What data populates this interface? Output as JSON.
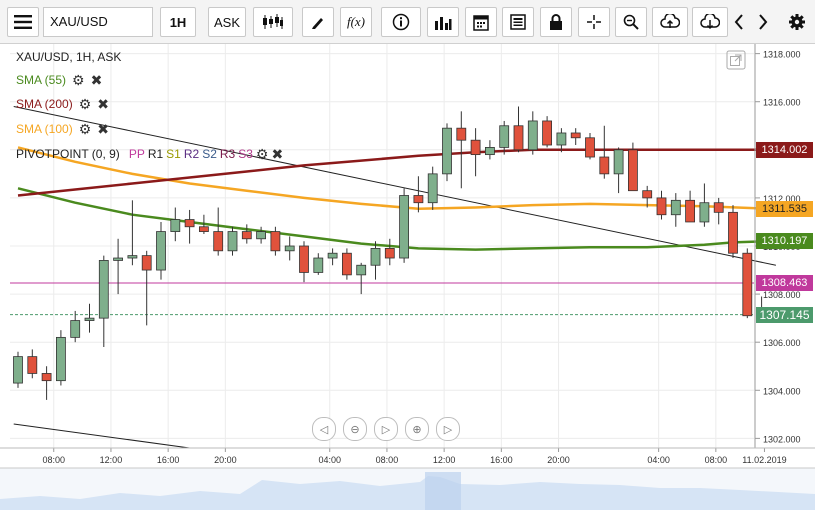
{
  "toolbar": {
    "symbol": "XAU/USD",
    "timeframe": "1H",
    "price_type": "ASK"
  },
  "legend": {
    "title": "XAU/USD, 1H, ASK",
    "sma55": "SMA (55)",
    "sma200": "SMA (200)",
    "sma100": "SMA (100)",
    "pivot": {
      "prefix": "PIVOTPOINT (0, 9)",
      "pp": "PP",
      "r1": "R1",
      "s1": "S1",
      "r2": "R2",
      "s2": "S2",
      "r3": "R3",
      "s3": "S3"
    }
  },
  "colors": {
    "bull": "#7faf8c",
    "bear": "#e0523c",
    "sma55": "#4a8a1e",
    "sma200": "#8b1a1a",
    "sma100": "#f5a623",
    "pivot": "#c0399c",
    "last": "#4c9a6c"
  },
  "price_tags": {
    "sma200": "1314.002",
    "sma100": "1311.535",
    "sma55": "1310.197",
    "pivot": "1308.463",
    "last": "1307.145"
  },
  "chart_data": {
    "type": "candlestick",
    "title": "XAU/USD, 1H, ASK",
    "y_ticks": [
      "1302.000",
      "1304.000",
      "1306.000",
      "1308.000",
      "1310.000",
      "1312.000",
      "1314.000",
      "1316.000",
      "1318.000"
    ],
    "ylim": [
      1301.6,
      1318.4
    ],
    "x_ticks": [
      {
        "label": "08:00",
        "index": 2.5
      },
      {
        "label": "12:00",
        "index": 6.5
      },
      {
        "label": "16:00",
        "index": 10.5
      },
      {
        "label": "20:00",
        "index": 14.5
      },
      {
        "label": "04:00",
        "index": 21.8
      },
      {
        "label": "08:00",
        "index": 25.8
      },
      {
        "label": "12:00",
        "index": 29.8
      },
      {
        "label": "16:00",
        "index": 33.8
      },
      {
        "label": "20:00",
        "index": 37.8
      },
      {
        "label": "04:00",
        "index": 44.8
      },
      {
        "label": "08:00",
        "index": 48.8
      },
      {
        "label": "11.02.2019",
        "index": 52.2
      }
    ],
    "candles": [
      {
        "o": 1304.3,
        "h": 1305.6,
        "l": 1304.1,
        "c": 1305.4
      },
      {
        "o": 1305.4,
        "h": 1305.7,
        "l": 1304.5,
        "c": 1304.7
      },
      {
        "o": 1304.7,
        "h": 1305.0,
        "l": 1303.6,
        "c": 1304.4
      },
      {
        "o": 1304.4,
        "h": 1306.5,
        "l": 1304.2,
        "c": 1306.2
      },
      {
        "o": 1306.2,
        "h": 1307.3,
        "l": 1306.0,
        "c": 1306.9
      },
      {
        "o": 1306.9,
        "h": 1307.6,
        "l": 1306.4,
        "c": 1307.0
      },
      {
        "o": 1307.0,
        "h": 1309.6,
        "l": 1305.8,
        "c": 1309.4
      },
      {
        "o": 1309.4,
        "h": 1310.3,
        "l": 1308.0,
        "c": 1309.5
      },
      {
        "o": 1309.5,
        "h": 1311.9,
        "l": 1309.2,
        "c": 1309.6
      },
      {
        "o": 1309.6,
        "h": 1309.8,
        "l": 1306.7,
        "c": 1309.0
      },
      {
        "o": 1309.0,
        "h": 1311.0,
        "l": 1308.6,
        "c": 1310.6
      },
      {
        "o": 1310.6,
        "h": 1311.6,
        "l": 1310.2,
        "c": 1311.1
      },
      {
        "o": 1311.1,
        "h": 1311.5,
        "l": 1310.1,
        "c": 1310.8
      },
      {
        "o": 1310.8,
        "h": 1311.3,
        "l": 1310.5,
        "c": 1310.6
      },
      {
        "o": 1310.6,
        "h": 1311.6,
        "l": 1309.6,
        "c": 1309.8
      },
      {
        "o": 1309.8,
        "h": 1310.8,
        "l": 1309.6,
        "c": 1310.6
      },
      {
        "o": 1310.6,
        "h": 1310.9,
        "l": 1310.1,
        "c": 1310.3
      },
      {
        "o": 1310.3,
        "h": 1310.8,
        "l": 1310.1,
        "c": 1310.6
      },
      {
        "o": 1310.6,
        "h": 1310.8,
        "l": 1309.6,
        "c": 1309.8
      },
      {
        "o": 1309.8,
        "h": 1310.4,
        "l": 1309.4,
        "c": 1310.0
      },
      {
        "o": 1310.0,
        "h": 1310.2,
        "l": 1308.5,
        "c": 1308.9
      },
      {
        "o": 1308.9,
        "h": 1309.7,
        "l": 1308.8,
        "c": 1309.5
      },
      {
        "o": 1309.5,
        "h": 1309.9,
        "l": 1309.2,
        "c": 1309.7
      },
      {
        "o": 1309.7,
        "h": 1309.9,
        "l": 1308.6,
        "c": 1308.8
      },
      {
        "o": 1308.8,
        "h": 1309.3,
        "l": 1308.0,
        "c": 1309.2
      },
      {
        "o": 1309.2,
        "h": 1310.2,
        "l": 1308.6,
        "c": 1309.9
      },
      {
        "o": 1309.9,
        "h": 1310.3,
        "l": 1309.2,
        "c": 1309.5
      },
      {
        "o": 1309.5,
        "h": 1312.4,
        "l": 1309.3,
        "c": 1312.1
      },
      {
        "o": 1312.1,
        "h": 1312.9,
        "l": 1311.4,
        "c": 1311.8
      },
      {
        "o": 1311.8,
        "h": 1313.3,
        "l": 1311.5,
        "c": 1313.0
      },
      {
        "o": 1313.0,
        "h": 1315.1,
        "l": 1312.7,
        "c": 1314.9
      },
      {
        "o": 1314.9,
        "h": 1315.6,
        "l": 1312.4,
        "c": 1314.4
      },
      {
        "o": 1314.4,
        "h": 1314.9,
        "l": 1312.9,
        "c": 1313.8
      },
      {
        "o": 1313.8,
        "h": 1314.4,
        "l": 1313.6,
        "c": 1314.1
      },
      {
        "o": 1314.1,
        "h": 1315.2,
        "l": 1313.8,
        "c": 1315.0
      },
      {
        "o": 1315.0,
        "h": 1315.8,
        "l": 1313.9,
        "c": 1314.0
      },
      {
        "o": 1314.0,
        "h": 1315.6,
        "l": 1313.8,
        "c": 1315.2
      },
      {
        "o": 1315.2,
        "h": 1315.4,
        "l": 1314.1,
        "c": 1314.2
      },
      {
        "o": 1314.2,
        "h": 1314.9,
        "l": 1313.9,
        "c": 1314.7
      },
      {
        "o": 1314.7,
        "h": 1314.9,
        "l": 1314.2,
        "c": 1314.5
      },
      {
        "o": 1314.5,
        "h": 1314.7,
        "l": 1313.6,
        "c": 1313.7
      },
      {
        "o": 1313.7,
        "h": 1315.0,
        "l": 1312.8,
        "c": 1313.0
      },
      {
        "o": 1313.0,
        "h": 1314.1,
        "l": 1312.2,
        "c": 1314.0
      },
      {
        "o": 1314.0,
        "h": 1314.3,
        "l": 1312.3,
        "c": 1312.3
      },
      {
        "o": 1312.3,
        "h": 1312.5,
        "l": 1311.6,
        "c": 1312.0
      },
      {
        "o": 1312.0,
        "h": 1312.3,
        "l": 1311.1,
        "c": 1311.3
      },
      {
        "o": 1311.3,
        "h": 1312.2,
        "l": 1310.8,
        "c": 1311.9
      },
      {
        "o": 1311.9,
        "h": 1312.3,
        "l": 1311.0,
        "c": 1311.0
      },
      {
        "o": 1311.0,
        "h": 1312.6,
        "l": 1310.8,
        "c": 1311.8
      },
      {
        "o": 1311.8,
        "h": 1312.0,
        "l": 1310.9,
        "c": 1311.4
      },
      {
        "o": 1311.4,
        "h": 1311.7,
        "l": 1309.5,
        "c": 1309.7
      },
      {
        "o": 1309.7,
        "h": 1309.9,
        "l": 1307.0,
        "c": 1307.1
      },
      {
        "o": 1307.1,
        "h": 1307.9,
        "l": 1307.0,
        "c": 1307.15
      }
    ],
    "sma55": [
      [
        0,
        1312.4
      ],
      [
        4,
        1311.8
      ],
      [
        8,
        1311.3
      ],
      [
        12,
        1311.0
      ],
      [
        16,
        1310.7
      ],
      [
        20,
        1310.4
      ],
      [
        24,
        1310.1
      ],
      [
        28,
        1309.9
      ],
      [
        32,
        1309.85
      ],
      [
        36,
        1309.9
      ],
      [
        40,
        1309.95
      ],
      [
        44,
        1309.95
      ],
      [
        46,
        1310.0
      ],
      [
        48,
        1310.05
      ],
      [
        50,
        1310.15
      ],
      [
        52.5,
        1310.2
      ]
    ],
    "sma100": [
      [
        0,
        1314.1
      ],
      [
        4,
        1313.5
      ],
      [
        8,
        1313.0
      ],
      [
        12,
        1312.6
      ],
      [
        16,
        1312.3
      ],
      [
        20,
        1312.0
      ],
      [
        24,
        1311.75
      ],
      [
        28,
        1311.55
      ],
      [
        32,
        1311.6
      ],
      [
        36,
        1311.7
      ],
      [
        40,
        1311.75
      ],
      [
        44,
        1311.7
      ],
      [
        48,
        1311.65
      ],
      [
        52.5,
        1311.55
      ]
    ],
    "sma200": [
      [
        0,
        1312.1
      ],
      [
        4,
        1312.35
      ],
      [
        8,
        1312.6
      ],
      [
        12,
        1312.85
      ],
      [
        16,
        1313.1
      ],
      [
        20,
        1313.35
      ],
      [
        24,
        1313.55
      ],
      [
        28,
        1313.75
      ],
      [
        32,
        1313.9
      ],
      [
        36,
        1314.0
      ],
      [
        40,
        1314.0
      ],
      [
        44,
        1314.0
      ],
      [
        48,
        1314.0
      ],
      [
        52.5,
        1314.0
      ]
    ],
    "trend_lines": [
      {
        "from": [
          -0.3,
          1315.8
        ],
        "to": [
          53,
          1309.2
        ]
      },
      {
        "from": [
          -0.3,
          1302.6
        ],
        "to": [
          12,
          1301.6
        ]
      }
    ],
    "pivot_level": 1308.463,
    "last_price": 1307.145
  }
}
